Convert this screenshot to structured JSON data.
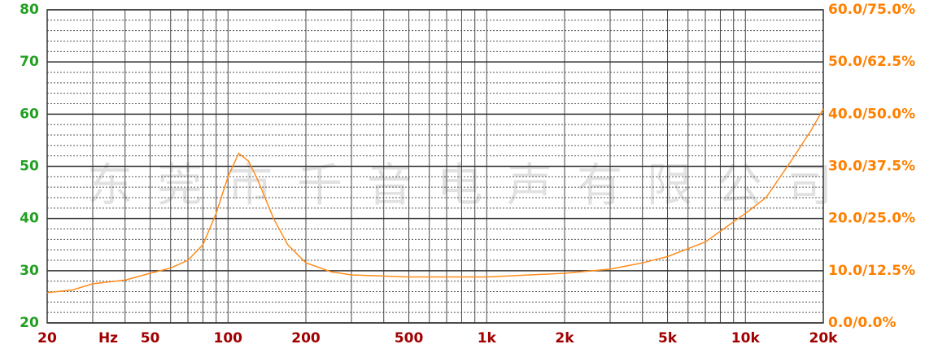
{
  "chart_data": {
    "type": "line",
    "watermark": "东莞市千音电声有限公司",
    "x_unit_label": "Hz",
    "xscale": "log",
    "xlim": [
      20,
      20000
    ],
    "xticks": [
      20,
      50,
      100,
      200,
      500,
      {
        "value": 1000,
        "label": "1k"
      },
      {
        "value": 2000,
        "label": "2k"
      },
      {
        "value": 5000,
        "label": "5k"
      },
      {
        "value": 10000,
        "label": "10k"
      },
      {
        "value": 20000,
        "label": "20k"
      }
    ],
    "xgrid": [
      20,
      30,
      40,
      50,
      60,
      70,
      80,
      90,
      100,
      200,
      300,
      400,
      500,
      600,
      700,
      800,
      900,
      1000,
      2000,
      3000,
      4000,
      5000,
      6000,
      7000,
      8000,
      9000,
      10000,
      20000
    ],
    "ylim": [
      20,
      80
    ],
    "yticks": [
      20,
      30,
      40,
      50,
      60,
      70,
      80
    ],
    "minor_yticks": [
      22,
      24,
      26,
      28,
      32,
      34,
      36,
      38,
      42,
      44,
      46,
      48,
      52,
      54,
      56,
      58,
      62,
      64,
      66,
      68,
      72,
      74,
      76,
      78
    ],
    "y2lim": [
      0,
      60
    ],
    "y2ticks": [
      {
        "value": 0,
        "label": "0.0/0.0%"
      },
      {
        "value": 10,
        "label": "10.0/12.5%"
      },
      {
        "value": 20,
        "label": "20.0/25.0%"
      },
      {
        "value": 30,
        "label": "30.0/37.5%"
      },
      {
        "value": 40,
        "label": "40.0/50.0%"
      },
      {
        "value": 50,
        "label": "50.0/62.5%"
      },
      {
        "value": 60,
        "label": "60.0/75.0%"
      }
    ],
    "grid": true,
    "series": [
      {
        "color": "#ff8c1a",
        "x": [
          20,
          25,
          30,
          40,
          50,
          60,
          70,
          80,
          90,
          100,
          110,
          120,
          130,
          150,
          170,
          200,
          250,
          300,
          500,
          1000,
          2000,
          3000,
          4000,
          5000,
          7000,
          10000,
          12000,
          15000,
          18000,
          20000
        ],
        "values": [
          25.8,
          26.3,
          27.5,
          28.2,
          29.5,
          30.5,
          32,
          35,
          41,
          48,
          52.5,
          51,
          47.5,
          40,
          35,
          31.5,
          29.8,
          29.2,
          28.8,
          28.8,
          29.5,
          30.3,
          31.5,
          32.7,
          35.5,
          41,
          44,
          51,
          57,
          61
        ]
      }
    ]
  }
}
